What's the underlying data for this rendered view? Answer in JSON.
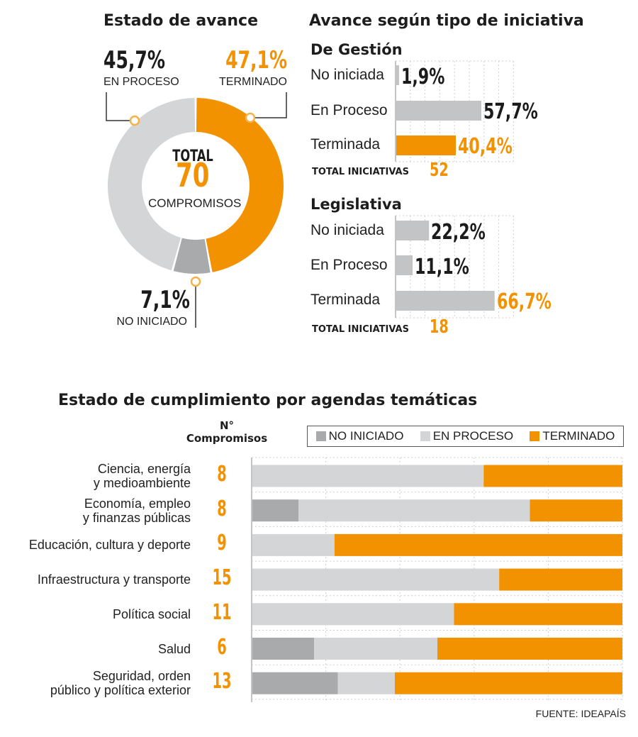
{
  "colors": {
    "no_iniciado": "#a8aaac",
    "en_proceso": "#d3d5d6",
    "terminado": "#f39200",
    "gestion_bar": "#c2c4c6"
  },
  "donut": {
    "title": "Estado de avance",
    "total_label": "TOTAL",
    "total_value": "70",
    "total_unit": "COMPROMISOS",
    "en_proceso": {
      "pct": "45,7%",
      "label": "EN PROCESO"
    },
    "terminado": {
      "pct": "47,1%",
      "label": "TERMINADO"
    },
    "no_iniciado": {
      "pct": "7,1%",
      "label": "NO INICIADO"
    }
  },
  "tipo": {
    "title": "Avance según tipo de iniciativa",
    "gestion": {
      "title": "De Gestión",
      "rows": [
        {
          "label": "No iniciada",
          "pct": "1,9%"
        },
        {
          "label": "En Proceso",
          "pct": "57,7%"
        },
        {
          "label": "Terminada",
          "pct": "40,4%"
        }
      ],
      "total_label": "TOTAL INICIATIVAS",
      "total_value": "52"
    },
    "legislativa": {
      "title": "Legislativa",
      "rows": [
        {
          "label": "No iniciada",
          "pct": "22,2%"
        },
        {
          "label": "En Proceso",
          "pct": "11,1%"
        },
        {
          "label": "Terminada",
          "pct": "66,7%"
        }
      ],
      "total_label": "TOTAL INICIATIVAS",
      "total_value": "18"
    }
  },
  "agendas": {
    "title": "Estado de cumplimiento por agendas temáticas",
    "count_header_1": "N°",
    "count_header_2": "Compromisos",
    "legend": {
      "no_iniciado": "NO INICIADO",
      "en_proceso": "EN PROCESO",
      "terminado": "TERMINADO"
    },
    "rows": [
      {
        "line1": "Ciencia, energía",
        "line2": "y medioambiente",
        "count": "8"
      },
      {
        "line1": "Economía, empleo",
        "line2": "y finanzas públicas",
        "count": "8"
      },
      {
        "line1": "Educación, cultura y deporte",
        "line2": "",
        "count": "9"
      },
      {
        "line1": "Infraestructura y transporte",
        "line2": "",
        "count": "15"
      },
      {
        "line1": "Política social",
        "line2": "",
        "count": "11"
      },
      {
        "line1": "Salud",
        "line2": "",
        "count": "6"
      },
      {
        "line1": "Seguridad, orden",
        "line2": "público y política exterior",
        "count": "13"
      }
    ]
  },
  "source": "FUENTE: IDEAPAÍS",
  "chart_data": [
    {
      "type": "pie",
      "title": "Estado de avance",
      "categories": [
        "EN PROCESO",
        "TERMINADO",
        "NO INICIADO"
      ],
      "values": [
        45.7,
        47.1,
        7.1
      ]
    },
    {
      "type": "bar",
      "title": "De Gestión",
      "categories": [
        "No iniciada",
        "En Proceso",
        "Terminada"
      ],
      "values": [
        1.9,
        57.7,
        40.4
      ]
    },
    {
      "type": "bar",
      "title": "Legislativa",
      "categories": [
        "No iniciada",
        "En Proceso",
        "Terminada"
      ],
      "values": [
        22.2,
        11.1,
        66.7
      ]
    },
    {
      "type": "bar",
      "title": "Estado de cumplimiento por agendas temáticas",
      "categories": [
        "Ciencia, energía y medioambiente",
        "Economía, empleo y finanzas públicas",
        "Educación, cultura y deporte",
        "Infraestructura y transporte",
        "Política social",
        "Salud",
        "Seguridad, orden público y política exterior"
      ],
      "series": [
        {
          "name": "NO INICIADO",
          "values": [
            0,
            12.5,
            0,
            0,
            0,
            16.7,
            23.1
          ]
        },
        {
          "name": "EN PROCESO",
          "values": [
            62.5,
            62.5,
            22.2,
            66.7,
            54.5,
            33.3,
            15.4
          ]
        },
        {
          "name": "TERMINADO",
          "values": [
            37.5,
            25.0,
            77.8,
            33.3,
            45.5,
            50.0,
            61.5
          ]
        }
      ],
      "ylim": [
        0,
        100
      ]
    }
  ]
}
